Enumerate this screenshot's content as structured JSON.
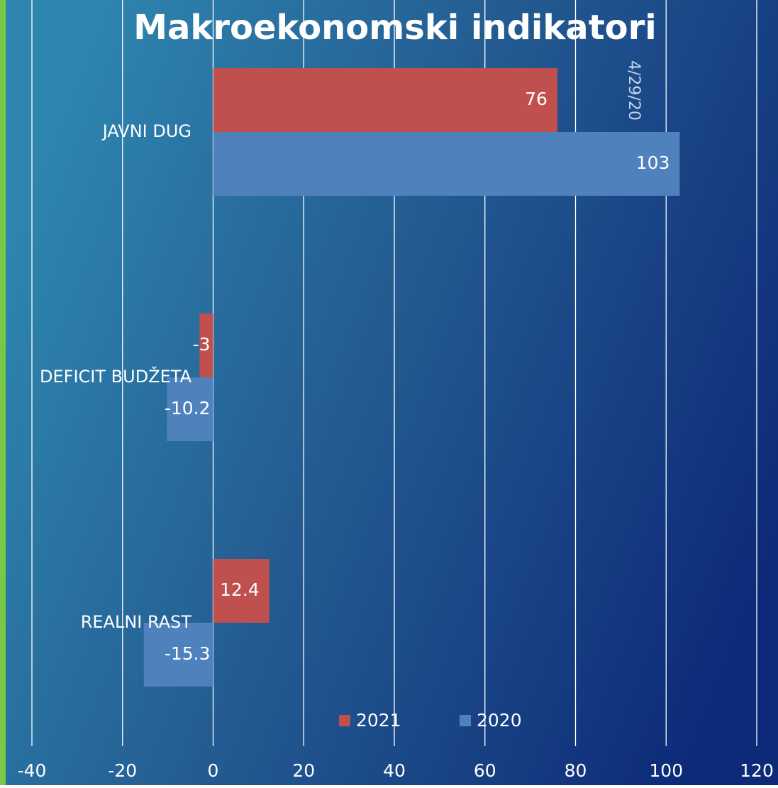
{
  "date": "4/29/20",
  "chart_data": {
    "type": "bar",
    "orientation": "horizontal",
    "title": "Makroekonomski indikatori",
    "categories": [
      "JAVNI DUG",
      "DEFICIT BUDŽETA",
      "REALNI RAST"
    ],
    "series": [
      {
        "name": "2021",
        "color": "#c0504d",
        "values": [
          76,
          -3,
          12.4
        ]
      },
      {
        "name": "2020",
        "color": "#4f81bd",
        "values": [
          103,
          -10.2,
          -15.3
        ]
      }
    ],
    "xlim": [
      -40,
      120
    ],
    "xticks": [
      -40,
      -20,
      0,
      20,
      40,
      60,
      80,
      100,
      120
    ],
    "grid": true,
    "legend": "bottom"
  }
}
